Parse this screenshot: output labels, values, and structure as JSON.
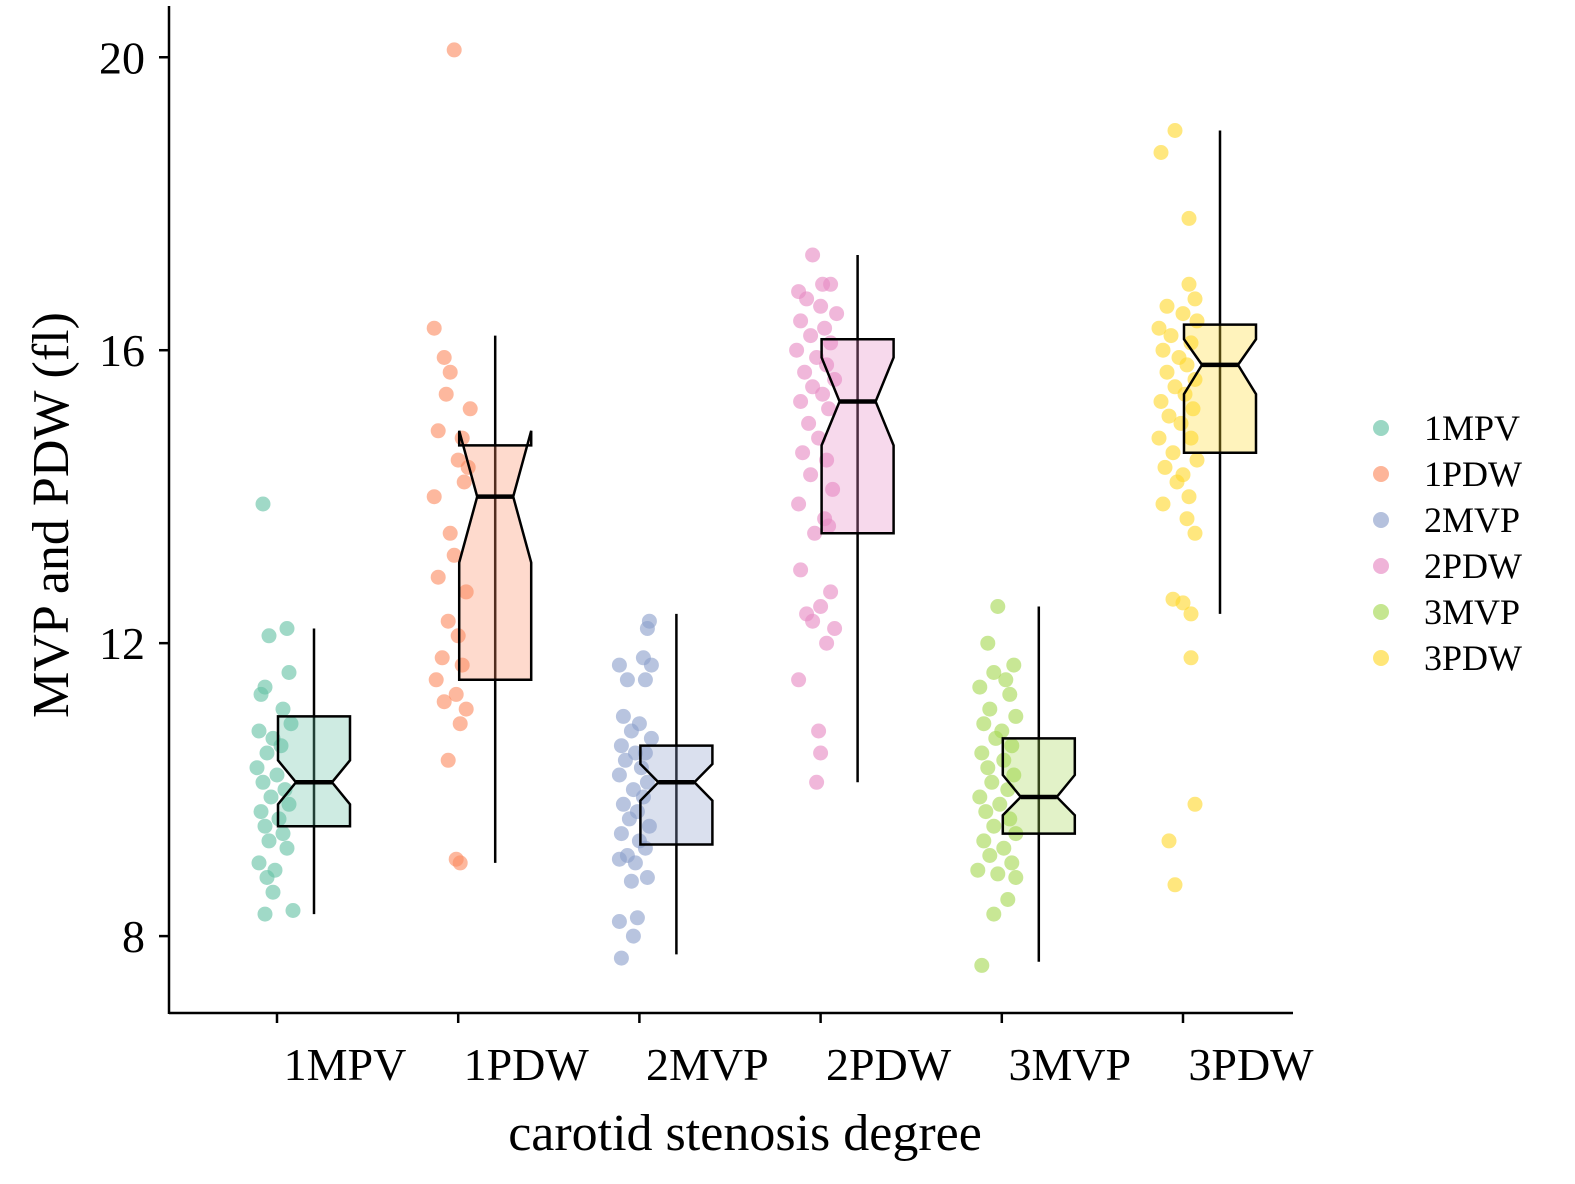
{
  "chart_data": {
    "type": "boxplot",
    "title": "",
    "xlabel": "carotid stenosis degree",
    "ylabel": "MVP and PDW (fl)",
    "categories": [
      "1MPV",
      "1PDW",
      "2MVP",
      "2PDW",
      "3MVP",
      "3PDW"
    ],
    "ylim": [
      6.95,
      20.7
    ],
    "yticks": [
      8,
      12,
      16,
      20
    ],
    "grid": false,
    "notched": true,
    "legend": {
      "position": "right",
      "entries": [
        "1MPV",
        "1PDW",
        "2MVP",
        "2PDW",
        "3MVP",
        "3PDW"
      ]
    },
    "colors": [
      "#66c2a5",
      "#fc8d62",
      "#8da0cb",
      "#e78ac3",
      "#a6d854",
      "#ffd92f"
    ],
    "series": [
      {
        "name": "1MPV",
        "box": {
          "whisker_low": 8.3,
          "q1": 9.5,
          "median": 10.1,
          "q3": 11.0,
          "whisker_high": 12.2,
          "notch_low": 9.8,
          "notch_high": 10.4
        },
        "points": [
          [
            -0.05,
            13.9
          ],
          [
            -0.02,
            12.1
          ],
          [
            0.07,
            12.2
          ],
          [
            -0.04,
            11.4
          ],
          [
            0.08,
            11.6
          ],
          [
            -0.06,
            11.3
          ],
          [
            0.05,
            11.1
          ],
          [
            -0.07,
            10.8
          ],
          [
            0.0,
            10.7
          ],
          [
            0.09,
            10.9
          ],
          [
            -0.03,
            10.5
          ],
          [
            0.04,
            10.6
          ],
          [
            -0.08,
            10.3
          ],
          [
            0.02,
            10.2
          ],
          [
            -0.05,
            10.1
          ],
          [
            0.06,
            10.0
          ],
          [
            -0.01,
            9.9
          ],
          [
            0.08,
            9.8
          ],
          [
            -0.06,
            9.7
          ],
          [
            0.03,
            9.6
          ],
          [
            -0.04,
            9.5
          ],
          [
            0.05,
            9.4
          ],
          [
            -0.02,
            9.3
          ],
          [
            0.07,
            9.2
          ],
          [
            -0.07,
            9.0
          ],
          [
            0.01,
            8.9
          ],
          [
            -0.03,
            8.8
          ],
          [
            0.0,
            8.6
          ],
          [
            -0.04,
            8.3
          ],
          [
            0.1,
            8.35
          ]
        ]
      },
      {
        "name": "1PDW",
        "box": {
          "whisker_low": 9.0,
          "q1": 11.5,
          "median": 14.0,
          "q3": 14.7,
          "whisker_high": 16.2,
          "notch_low": 13.1,
          "notch_high": 14.9
        },
        "points": [
          [
            0.0,
            20.1
          ],
          [
            -0.1,
            16.3
          ],
          [
            -0.05,
            15.9
          ],
          [
            -0.02,
            15.7
          ],
          [
            0.08,
            15.2
          ],
          [
            -0.04,
            15.4
          ],
          [
            -0.08,
            14.9
          ],
          [
            0.04,
            14.8
          ],
          [
            0.02,
            14.5
          ],
          [
            0.07,
            14.4
          ],
          [
            -0.1,
            14.0
          ],
          [
            0.05,
            14.2
          ],
          [
            -0.02,
            13.5
          ],
          [
            0.0,
            13.2
          ],
          [
            -0.08,
            12.9
          ],
          [
            0.06,
            12.7
          ],
          [
            -0.03,
            12.3
          ],
          [
            0.02,
            12.1
          ],
          [
            -0.06,
            11.8
          ],
          [
            0.04,
            11.7
          ],
          [
            -0.09,
            11.5
          ],
          [
            0.01,
            11.3
          ],
          [
            -0.05,
            11.2
          ],
          [
            0.06,
            11.1
          ],
          [
            0.03,
            10.9
          ],
          [
            -0.03,
            10.4
          ],
          [
            0.01,
            9.05
          ],
          [
            0.03,
            9.0
          ]
        ]
      },
      {
        "name": "2MVP",
        "box": {
          "whisker_low": 7.75,
          "q1": 9.25,
          "median": 10.1,
          "q3": 10.6,
          "whisker_high": 12.4,
          "notch_low": 9.85,
          "notch_high": 10.35
        },
        "points": [
          [
            0.07,
            12.3
          ],
          [
            0.06,
            12.2
          ],
          [
            -0.08,
            11.7
          ],
          [
            0.04,
            11.8
          ],
          [
            0.08,
            11.7
          ],
          [
            -0.04,
            11.5
          ],
          [
            0.05,
            11.5
          ],
          [
            -0.06,
            11.0
          ],
          [
            0.02,
            10.9
          ],
          [
            -0.02,
            10.8
          ],
          [
            0.08,
            10.7
          ],
          [
            -0.07,
            10.6
          ],
          [
            0.0,
            10.5
          ],
          [
            0.05,
            10.5
          ],
          [
            -0.05,
            10.4
          ],
          [
            0.03,
            10.3
          ],
          [
            -0.08,
            10.2
          ],
          [
            0.06,
            10.1
          ],
          [
            -0.01,
            10.0
          ],
          [
            0.04,
            9.9
          ],
          [
            -0.06,
            9.8
          ],
          [
            0.01,
            9.7
          ],
          [
            -0.03,
            9.6
          ],
          [
            0.07,
            9.5
          ],
          [
            -0.07,
            9.4
          ],
          [
            0.02,
            9.3
          ],
          [
            0.05,
            9.2
          ],
          [
            -0.04,
            9.1
          ],
          [
            0.0,
            9.0
          ],
          [
            -0.08,
            9.05
          ],
          [
            0.06,
            8.8
          ],
          [
            -0.02,
            8.75
          ],
          [
            -0.08,
            8.2
          ],
          [
            0.01,
            8.25
          ],
          [
            -0.01,
            8.0
          ],
          [
            -0.07,
            7.7
          ]
        ]
      },
      {
        "name": "2PDW",
        "box": {
          "whisker_low": 10.1,
          "q1": 13.5,
          "median": 15.3,
          "q3": 16.15,
          "whisker_high": 17.3,
          "notch_low": 14.7,
          "notch_high": 15.9
        },
        "points": [
          [
            -0.02,
            17.3
          ],
          [
            0.03,
            16.9
          ],
          [
            -0.09,
            16.8
          ],
          [
            0.07,
            16.9
          ],
          [
            -0.05,
            16.7
          ],
          [
            0.02,
            16.6
          ],
          [
            0.1,
            16.5
          ],
          [
            -0.08,
            16.4
          ],
          [
            0.04,
            16.3
          ],
          [
            -0.03,
            16.2
          ],
          [
            0.07,
            16.1
          ],
          [
            -0.1,
            16.0
          ],
          [
            0.0,
            15.9
          ],
          [
            0.05,
            15.8
          ],
          [
            -0.06,
            15.7
          ],
          [
            0.09,
            15.6
          ],
          [
            -0.02,
            15.5
          ],
          [
            0.03,
            15.4
          ],
          [
            -0.08,
            15.3
          ],
          [
            0.06,
            15.2
          ],
          [
            -0.04,
            15.0
          ],
          [
            0.01,
            14.8
          ],
          [
            -0.07,
            14.6
          ],
          [
            0.05,
            14.5
          ],
          [
            -0.03,
            14.3
          ],
          [
            0.08,
            14.1
          ],
          [
            -0.09,
            13.9
          ],
          [
            0.04,
            13.7
          ],
          [
            -0.01,
            13.5
          ],
          [
            0.06,
            13.6
          ],
          [
            -0.08,
            13.0
          ],
          [
            0.07,
            12.7
          ],
          [
            -0.05,
            12.4
          ],
          [
            0.02,
            12.5
          ],
          [
            0.09,
            12.2
          ],
          [
            -0.02,
            12.3
          ],
          [
            0.05,
            12.0
          ],
          [
            -0.09,
            11.5
          ],
          [
            0.01,
            10.8
          ],
          [
            0.02,
            10.5
          ],
          [
            0.0,
            10.1
          ]
        ]
      },
      {
        "name": "3MVP",
        "box": {
          "whisker_low": 7.65,
          "q1": 9.4,
          "median": 9.9,
          "q3": 10.7,
          "whisker_high": 12.5,
          "notch_low": 9.65,
          "notch_high": 10.2
        },
        "points": [
          [
            0.0,
            12.5
          ],
          [
            -0.05,
            12.0
          ],
          [
            0.08,
            11.7
          ],
          [
            -0.02,
            11.6
          ],
          [
            0.04,
            11.5
          ],
          [
            -0.09,
            11.4
          ],
          [
            0.06,
            11.3
          ],
          [
            -0.04,
            11.1
          ],
          [
            0.09,
            11.0
          ],
          [
            -0.07,
            10.9
          ],
          [
            0.02,
            10.8
          ],
          [
            -0.01,
            10.7
          ],
          [
            0.07,
            10.6
          ],
          [
            -0.08,
            10.5
          ],
          [
            0.03,
            10.4
          ],
          [
            -0.05,
            10.3
          ],
          [
            0.08,
            10.2
          ],
          [
            -0.03,
            10.1
          ],
          [
            0.05,
            10.0
          ],
          [
            -0.09,
            9.9
          ],
          [
            0.01,
            9.8
          ],
          [
            -0.06,
            9.7
          ],
          [
            0.06,
            9.6
          ],
          [
            -0.02,
            9.5
          ],
          [
            0.09,
            9.4
          ],
          [
            -0.07,
            9.3
          ],
          [
            0.03,
            9.2
          ],
          [
            -0.04,
            9.1
          ],
          [
            0.07,
            9.0
          ],
          [
            -0.1,
            8.9
          ],
          [
            0.0,
            8.85
          ],
          [
            0.09,
            8.8
          ],
          [
            0.05,
            8.5
          ],
          [
            -0.02,
            8.3
          ],
          [
            -0.08,
            7.6
          ]
        ]
      },
      {
        "name": "3PDW",
        "box": {
          "whisker_low": 12.4,
          "q1": 14.6,
          "median": 15.8,
          "q3": 16.35,
          "whisker_high": 19.0,
          "notch_low": 15.4,
          "notch_high": 16.15
        },
        "points": [
          [
            -0.02,
            19.0
          ],
          [
            -0.09,
            18.7
          ],
          [
            0.05,
            17.8
          ],
          [
            0.05,
            16.9
          ],
          [
            -0.06,
            16.6
          ],
          [
            0.08,
            16.7
          ],
          [
            0.02,
            16.5
          ],
          [
            -0.1,
            16.3
          ],
          [
            0.09,
            16.4
          ],
          [
            -0.04,
            16.2
          ],
          [
            0.06,
            16.1
          ],
          [
            -0.08,
            16.0
          ],
          [
            0.0,
            15.9
          ],
          [
            0.04,
            15.8
          ],
          [
            -0.06,
            15.7
          ],
          [
            0.08,
            15.6
          ],
          [
            -0.02,
            15.5
          ],
          [
            0.03,
            15.4
          ],
          [
            -0.09,
            15.3
          ],
          [
            0.07,
            15.2
          ],
          [
            -0.05,
            15.1
          ],
          [
            0.01,
            15.0
          ],
          [
            -0.1,
            14.8
          ],
          [
            0.06,
            14.8
          ],
          [
            -0.03,
            14.6
          ],
          [
            0.09,
            14.5
          ],
          [
            -0.07,
            14.4
          ],
          [
            0.02,
            14.3
          ],
          [
            -0.01,
            14.2
          ],
          [
            0.05,
            14.0
          ],
          [
            -0.08,
            13.9
          ],
          [
            0.04,
            13.7
          ],
          [
            0.08,
            13.5
          ],
          [
            -0.03,
            12.6
          ],
          [
            0.02,
            12.55
          ],
          [
            0.06,
            12.4
          ],
          [
            0.06,
            11.8
          ],
          [
            0.08,
            9.8
          ],
          [
            -0.05,
            9.3
          ],
          [
            -0.02,
            8.7
          ]
        ]
      }
    ]
  }
}
